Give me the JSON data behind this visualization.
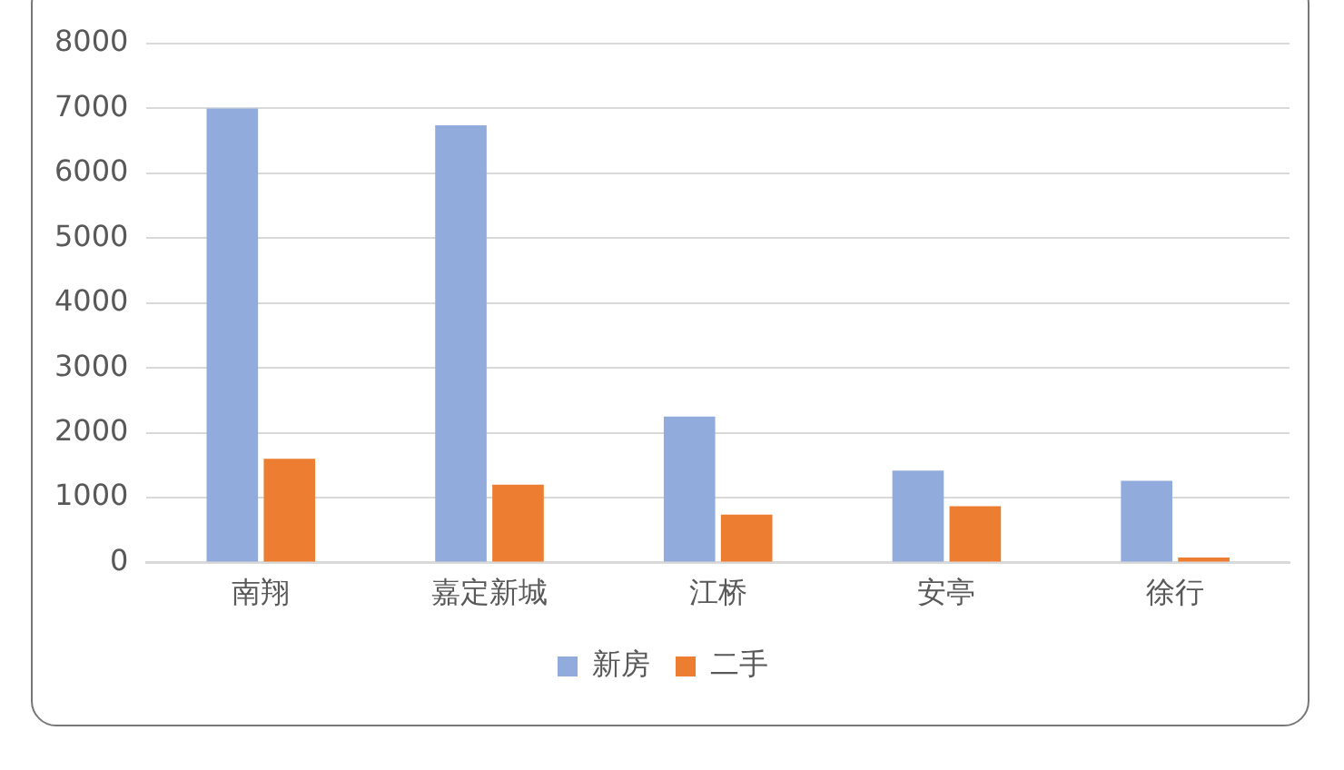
{
  "chart_data": {
    "type": "bar",
    "categories": [
      "南翔",
      "嘉定新城",
      "江桥",
      "安亭",
      "徐行"
    ],
    "series": [
      {
        "name": "新房",
        "color": "#92abdd",
        "values": [
          7000,
          6740,
          2250,
          1420,
          1260
        ]
      },
      {
        "name": "二手",
        "color": "#ed7d31",
        "values": [
          1600,
          1200,
          740,
          870,
          80
        ]
      }
    ],
    "ylim": [
      0,
      8000
    ],
    "yticks": [
      0,
      1000,
      2000,
      3000,
      4000,
      5000,
      6000,
      7000,
      8000
    ],
    "grid": "y",
    "legend": "bottom"
  }
}
